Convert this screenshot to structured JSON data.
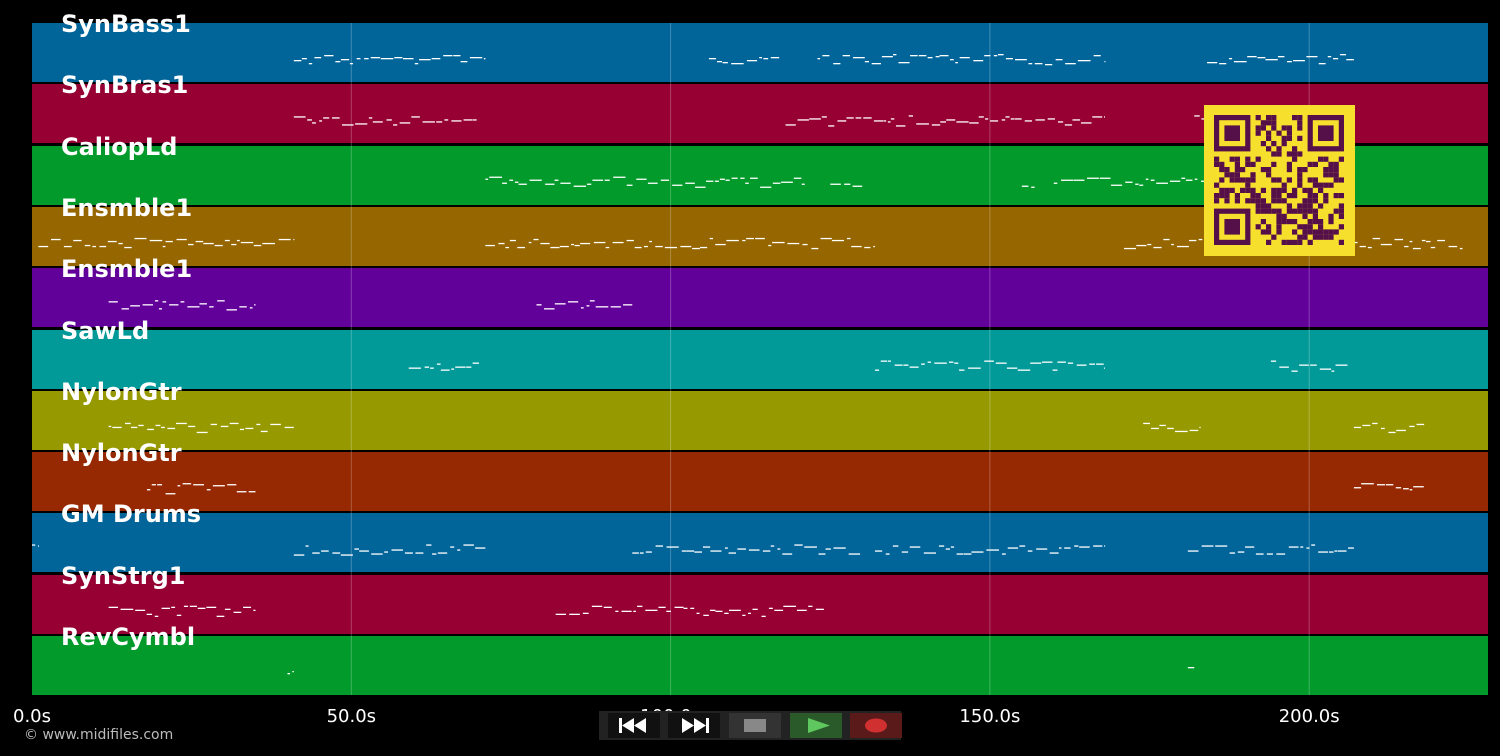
{
  "tracks": [
    {
      "name": "SynBass1",
      "color": "#02659a"
    },
    {
      "name": "SynBras1",
      "color": "#960033"
    },
    {
      "name": "CaliopLd",
      "color": "#029a2a"
    },
    {
      "name": "Ensmble1",
      "color": "#966600"
    },
    {
      "name": "Ensmble1",
      "color": "#62009a"
    },
    {
      "name": "SawLd",
      "color": "#029999"
    },
    {
      "name": "NylonGtr",
      "color": "#969a00"
    },
    {
      "name": "NylonGtr",
      "color": "#962802"
    },
    {
      "name": "GM Drums",
      "color": "#02659a"
    },
    {
      "name": "SynStrg1",
      "color": "#960033"
    },
    {
      "name": "RevCymbl",
      "color": "#029a2a"
    }
  ],
  "timeline": {
    "min_seconds": 0,
    "max_seconds": 228,
    "gridlines": [
      50,
      100,
      150,
      200
    ],
    "tick_labels": [
      {
        "t": 0,
        "label": "0.0s"
      },
      {
        "t": 50,
        "label": "50.0s"
      },
      {
        "t": 100,
        "label": "100.0s"
      },
      {
        "t": 150,
        "label": "150.0s"
      },
      {
        "t": 200,
        "label": "200.0s"
      }
    ]
  },
  "note_ranges": [
    [
      [
        41,
        71
      ],
      [
        106,
        117
      ],
      [
        123,
        168
      ],
      [
        184,
        207
      ]
    ],
    [
      [
        41,
        70
      ],
      [
        118,
        168
      ],
      [
        182,
        206
      ]
    ],
    [
      [
        71,
        121
      ],
      [
        125,
        130
      ],
      [
        155,
        157
      ],
      [
        160,
        207
      ]
    ],
    [
      [
        1,
        41
      ],
      [
        71,
        132
      ],
      [
        171,
        224
      ]
    ],
    [
      [
        12,
        35
      ],
      [
        79,
        94
      ]
    ],
    [
      [
        59,
        70
      ],
      [
        132,
        168
      ],
      [
        194,
        206
      ]
    ],
    [
      [
        12,
        41
      ],
      [
        174,
        183
      ],
      [
        207,
        218
      ]
    ],
    [
      [
        18,
        35
      ],
      [
        207,
        218
      ]
    ],
    [
      [
        0,
        1
      ],
      [
        41,
        71
      ],
      [
        94,
        130
      ],
      [
        132,
        168
      ],
      [
        181,
        207
      ]
    ],
    [
      [
        12,
        35
      ],
      [
        82,
        124
      ]
    ],
    [
      [
        40,
        41
      ],
      [
        181,
        182
      ]
    ]
  ],
  "controls": {
    "rewind": "rewind-icon",
    "fast_forward": "fast-forward-icon",
    "stop": "stop-icon",
    "play": "play-icon",
    "record": "record-icon",
    "stop_color": "#888888",
    "play_color": "#5ec85e",
    "record_color": "#d03030"
  },
  "copyright": "© www.midifiles.com"
}
